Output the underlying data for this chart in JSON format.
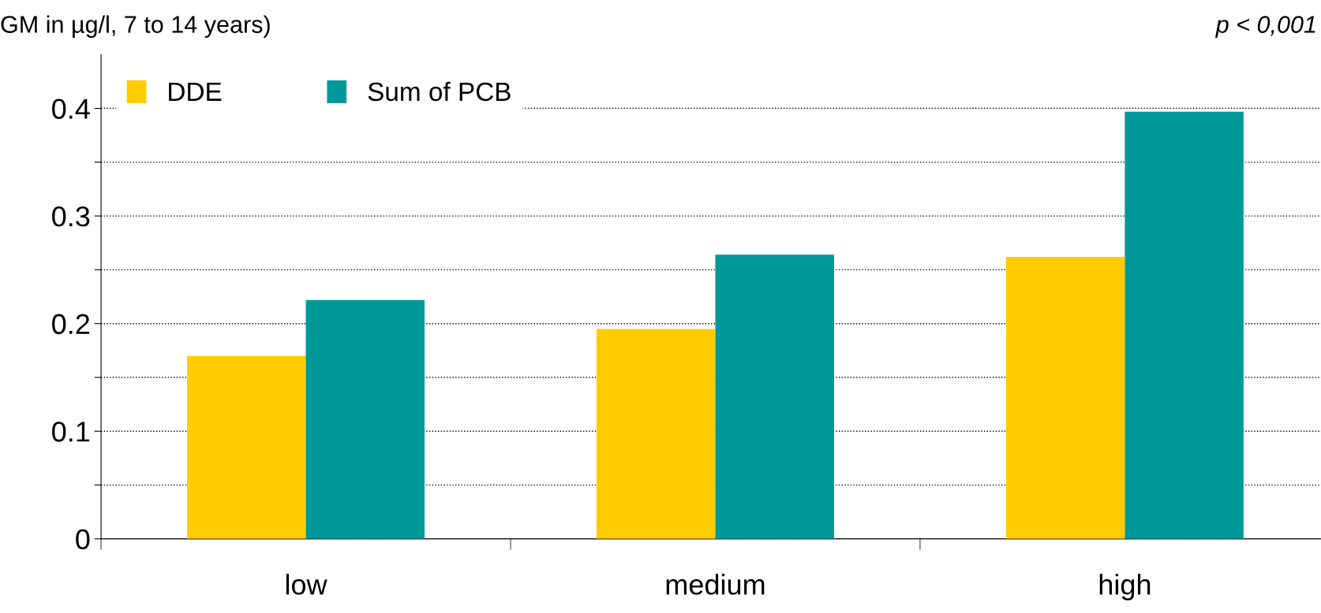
{
  "chart_data": {
    "type": "bar",
    "title": "GM in µg/l, 7 to 14 years)",
    "categories": [
      "low",
      "medium",
      "high"
    ],
    "series": [
      {
        "name": "DDE",
        "color": "#ffcc00",
        "values": [
          0.17,
          0.195,
          0.262
        ]
      },
      {
        "name": "Sum of PCB",
        "color": "#009999",
        "values": [
          0.222,
          0.264,
          0.397
        ]
      }
    ],
    "ylim": [
      0,
      0.45
    ],
    "yticks": [
      0,
      {
        "value": 0.05,
        "label": null
      },
      0.1,
      {
        "value": 0.15,
        "label": null
      },
      0.2,
      {
        "value": 0.25,
        "label": null
      },
      0.3,
      {
        "value": 0.35,
        "label": null
      },
      0.4
    ],
    "grid": "y",
    "legend": "top left",
    "annotations": [
      "p < 0,001"
    ]
  }
}
